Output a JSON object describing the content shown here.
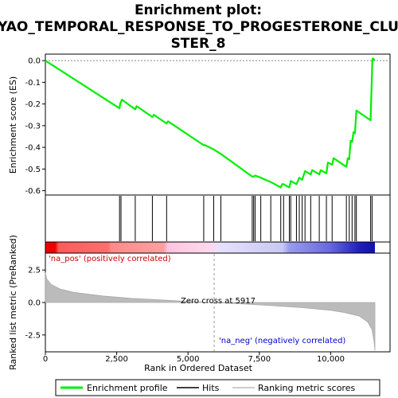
{
  "chart_data": {
    "type": "line",
    "title_lines": [
      "Enrichment plot:",
      "YAO_TEMPORAL_RESPONSE_TO_PROGESTERONE_CLU",
      "STER_8"
    ],
    "es_panel": {
      "ylabel": "Enrichment score (ES)",
      "ylim": [
        -0.62,
        0.03
      ],
      "yticks": [
        "0.0",
        "-0.1",
        "-0.2",
        "-0.3",
        "-0.4",
        "-0.5",
        "-0.6"
      ],
      "ytick_values": [
        0.0,
        -0.1,
        -0.2,
        -0.3,
        -0.4,
        -0.5,
        -0.6
      ],
      "series": [
        {
          "name": "Enrichment profile",
          "color": "#00ee00",
          "x": [
            0,
            2600,
            2620,
            2680,
            3150,
            3200,
            3750,
            3800,
            4250,
            4300,
            5550,
            5600,
            5900,
            6150,
            7250,
            7300,
            7350,
            7550,
            7900,
            8250,
            8300,
            8350,
            8550,
            8600,
            8800,
            8900,
            9000,
            9100,
            9300,
            9350,
            9600,
            9650,
            9850,
            9900,
            10050,
            10100,
            10550,
            10600,
            10650,
            10700,
            10750,
            10800,
            10850,
            10900,
            11400,
            11420,
            11440,
            11460,
            11480,
            11550
          ],
          "y": [
            0.0,
            -0.22,
            -0.2,
            -0.18,
            -0.225,
            -0.21,
            -0.26,
            -0.25,
            -0.29,
            -0.28,
            -0.39,
            -0.39,
            -0.41,
            -0.43,
            -0.535,
            -0.535,
            -0.53,
            -0.54,
            -0.56,
            -0.585,
            -0.57,
            -0.57,
            -0.585,
            -0.555,
            -0.57,
            -0.54,
            -0.55,
            -0.51,
            -0.525,
            -0.505,
            -0.525,
            -0.505,
            -0.52,
            -0.47,
            -0.48,
            -0.45,
            -0.49,
            -0.45,
            -0.455,
            -0.37,
            -0.375,
            -0.33,
            -0.335,
            -0.23,
            -0.275,
            -0.18,
            -0.09,
            0.005,
            0.01,
            0.0
          ]
        }
      ]
    },
    "hits": [
      2600,
      2650,
      3150,
      3750,
      4250,
      5550,
      5900,
      6150,
      7250,
      7300,
      7350,
      7550,
      7900,
      8250,
      8350,
      8550,
      8600,
      8800,
      8900,
      9000,
      9100,
      9300,
      9600,
      9850,
      10050,
      10550,
      10650,
      10750,
      10850,
      10900,
      11400,
      11450
    ],
    "ranked_panel": {
      "ylabel": "Ranked list metric (PreRanked)",
      "ylim": [
        -3.8,
        3.8
      ],
      "yticks": [
        "2.5",
        "0.0",
        "-2.5"
      ],
      "ytick_values": [
        2.5,
        0.0,
        -2.5
      ],
      "profile_x": [
        0,
        50,
        200,
        500,
        1000,
        2000,
        3000,
        4000,
        5000,
        5917,
        7000,
        8000,
        9000,
        10000,
        10500,
        11000,
        11300,
        11450,
        11520,
        11550
      ],
      "profile_y": [
        2.3,
        1.8,
        1.4,
        1.05,
        0.78,
        0.5,
        0.32,
        0.2,
        0.08,
        0.0,
        -0.12,
        -0.25,
        -0.4,
        -0.6,
        -0.78,
        -1.05,
        -1.5,
        -2.1,
        -3.0,
        -3.7
      ],
      "zero_cross_label": "Zero cross at 5917",
      "zero_cross": 5917,
      "pos_label": "'na_pos' (positively correlated)",
      "neg_label": "'na_neg' (negatively correlated)"
    },
    "xlabel": "Rank in Ordered Dataset",
    "xlim": [
      0,
      11550
    ],
    "xticks": [
      "0",
      "2,500",
      "5,000",
      "7,500",
      "10,000"
    ],
    "xtick_values": [
      0,
      2500,
      5000,
      7500,
      10000
    ],
    "legend": [
      {
        "label": "Enrichment profile",
        "color": "#00ee00"
      },
      {
        "label": "Hits",
        "color": "#000000"
      },
      {
        "label": "Ranking metric scores",
        "color": "#bbbbbb"
      }
    ]
  }
}
